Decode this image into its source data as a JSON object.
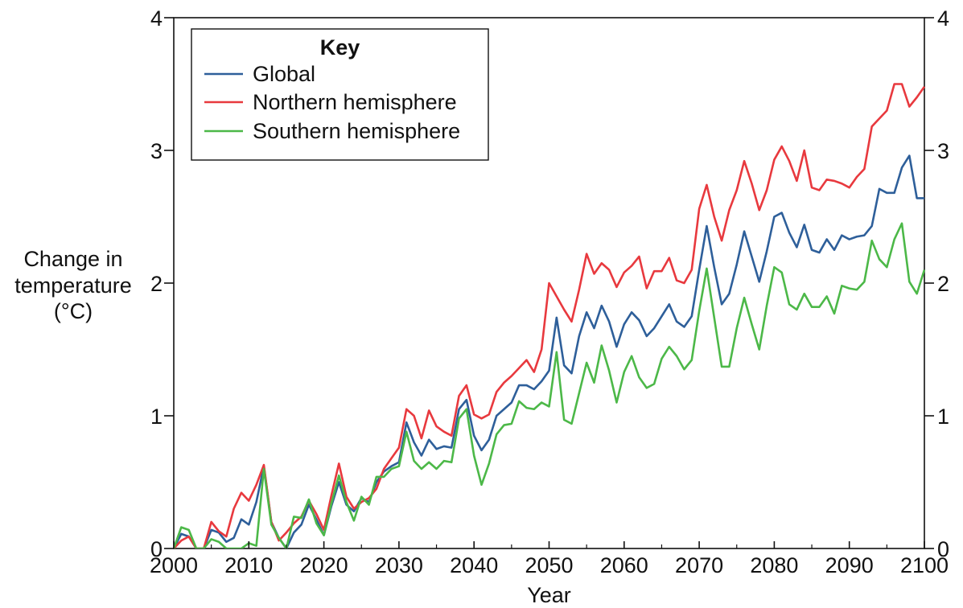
{
  "chart_data": {
    "type": "line",
    "xlabel": "Year",
    "ylabel_lines": [
      "Change in",
      "temperature",
      "(°C)"
    ],
    "xlim": [
      2000,
      2100
    ],
    "ylim": [
      0,
      4
    ],
    "x_ticks": [
      2000,
      2010,
      2020,
      2030,
      2040,
      2050,
      2060,
      2070,
      2080,
      2090,
      2100
    ],
    "y_ticks": [
      0,
      1,
      2,
      3,
      4
    ],
    "y_ticks_right": [
      0,
      1,
      2,
      3,
      4
    ],
    "grid": false,
    "legend": {
      "title": "Key",
      "position": "top-left"
    },
    "series": [
      {
        "name": "Global",
        "color": "#2e5f9a",
        "x": [
          2000,
          2001,
          2002,
          2003,
          2004,
          2005,
          2006,
          2007,
          2008,
          2009,
          2010,
          2011,
          2012,
          2013,
          2014,
          2015,
          2016,
          2017,
          2018,
          2019,
          2020,
          2021,
          2022,
          2023,
          2024,
          2025,
          2026,
          2027,
          2028,
          2029,
          2030,
          2031,
          2032,
          2033,
          2034,
          2035,
          2036,
          2037,
          2038,
          2039,
          2040,
          2041,
          2042,
          2043,
          2044,
          2045,
          2046,
          2047,
          2048,
          2049,
          2050,
          2051,
          2052,
          2053,
          2054,
          2055,
          2056,
          2057,
          2058,
          2059,
          2060,
          2061,
          2062,
          2063,
          2064,
          2065,
          2066,
          2067,
          2068,
          2069,
          2070,
          2071,
          2072,
          2073,
          2074,
          2075,
          2076,
          2077,
          2078,
          2079,
          2080,
          2081,
          2082,
          2083,
          2084,
          2085,
          2086,
          2087,
          2088,
          2089,
          2090,
          2091,
          2092,
          2093,
          2094,
          2095,
          2096,
          2097,
          2098,
          2099,
          2100
        ],
        "values": [
          0.0,
          0.11,
          0.09,
          0.0,
          0.0,
          0.14,
          0.12,
          0.05,
          0.08,
          0.22,
          0.18,
          0.35,
          0.62,
          0.2,
          0.08,
          0.0,
          0.12,
          0.18,
          0.33,
          0.22,
          0.1,
          0.32,
          0.5,
          0.33,
          0.28,
          0.38,
          0.35,
          0.5,
          0.58,
          0.62,
          0.65,
          0.95,
          0.8,
          0.7,
          0.82,
          0.75,
          0.77,
          0.76,
          1.05,
          1.12,
          0.85,
          0.74,
          0.82,
          1.0,
          1.05,
          1.1,
          1.23,
          1.23,
          1.2,
          1.26,
          1.34,
          1.74,
          1.38,
          1.32,
          1.6,
          1.78,
          1.66,
          1.83,
          1.71,
          1.52,
          1.69,
          1.78,
          1.72,
          1.6,
          1.66,
          1.75,
          1.84,
          1.71,
          1.67,
          1.75,
          2.1,
          2.43,
          2.12,
          1.84,
          1.92,
          2.14,
          2.39,
          2.2,
          2.01,
          2.24,
          2.5,
          2.53,
          2.38,
          2.27,
          2.44,
          2.25,
          2.23,
          2.33,
          2.25,
          2.36,
          2.33,
          2.35,
          2.36,
          2.43,
          2.71,
          2.68,
          2.68,
          2.87,
          2.96,
          2.64,
          2.64
        ]
      },
      {
        "name": "Northern hemisphere",
        "color": "#e8393e",
        "x": [
          2000,
          2001,
          2002,
          2003,
          2004,
          2005,
          2006,
          2007,
          2008,
          2009,
          2010,
          2011,
          2012,
          2013,
          2014,
          2015,
          2016,
          2017,
          2018,
          2019,
          2020,
          2021,
          2022,
          2023,
          2024,
          2025,
          2026,
          2027,
          2028,
          2029,
          2030,
          2031,
          2032,
          2033,
          2034,
          2035,
          2036,
          2037,
          2038,
          2039,
          2040,
          2041,
          2042,
          2043,
          2044,
          2045,
          2046,
          2047,
          2048,
          2049,
          2050,
          2051,
          2052,
          2053,
          2054,
          2055,
          2056,
          2057,
          2058,
          2059,
          2060,
          2061,
          2062,
          2063,
          2064,
          2065,
          2066,
          2067,
          2068,
          2069,
          2070,
          2071,
          2072,
          2073,
          2074,
          2075,
          2076,
          2077,
          2078,
          2079,
          2080,
          2081,
          2082,
          2083,
          2084,
          2085,
          2086,
          2087,
          2088,
          2089,
          2090,
          2091,
          2092,
          2093,
          2094,
          2095,
          2096,
          2097,
          2098,
          2099,
          2100
        ],
        "values": [
          0.0,
          0.06,
          0.09,
          0.0,
          0.0,
          0.2,
          0.13,
          0.09,
          0.3,
          0.42,
          0.36,
          0.48,
          0.63,
          0.2,
          0.06,
          0.12,
          0.19,
          0.24,
          0.36,
          0.26,
          0.14,
          0.4,
          0.64,
          0.39,
          0.3,
          0.35,
          0.38,
          0.45,
          0.6,
          0.68,
          0.76,
          1.05,
          1.0,
          0.83,
          1.04,
          0.92,
          0.88,
          0.85,
          1.15,
          1.23,
          1.01,
          0.98,
          1.01,
          1.18,
          1.25,
          1.3,
          1.36,
          1.42,
          1.33,
          1.5,
          2.0,
          1.9,
          1.8,
          1.71,
          1.95,
          2.22,
          2.07,
          2.15,
          2.1,
          1.97,
          2.08,
          2.13,
          2.2,
          1.96,
          2.09,
          2.09,
          2.19,
          2.02,
          2.0,
          2.1,
          2.56,
          2.74,
          2.5,
          2.32,
          2.55,
          2.7,
          2.92,
          2.75,
          2.55,
          2.7,
          2.93,
          3.03,
          2.92,
          2.77,
          3.0,
          2.72,
          2.7,
          2.78,
          2.77,
          2.75,
          2.72,
          2.8,
          2.86,
          3.18,
          3.24,
          3.3,
          3.5,
          3.5,
          3.33,
          3.4,
          3.48
        ]
      },
      {
        "name": "Southern hemisphere",
        "color": "#4cb848",
        "x": [
          2000,
          2001,
          2002,
          2003,
          2004,
          2005,
          2006,
          2007,
          2008,
          2009,
          2010,
          2011,
          2012,
          2013,
          2014,
          2015,
          2016,
          2017,
          2018,
          2019,
          2020,
          2021,
          2022,
          2023,
          2024,
          2025,
          2026,
          2027,
          2028,
          2029,
          2030,
          2031,
          2032,
          2033,
          2034,
          2035,
          2036,
          2037,
          2038,
          2039,
          2040,
          2041,
          2042,
          2043,
          2044,
          2045,
          2046,
          2047,
          2048,
          2049,
          2050,
          2051,
          2052,
          2053,
          2054,
          2055,
          2056,
          2057,
          2058,
          2059,
          2060,
          2061,
          2062,
          2063,
          2064,
          2065,
          2066,
          2067,
          2068,
          2069,
          2070,
          2071,
          2072,
          2073,
          2074,
          2075,
          2076,
          2077,
          2078,
          2079,
          2080,
          2081,
          2082,
          2083,
          2084,
          2085,
          2086,
          2087,
          2088,
          2089,
          2090,
          2091,
          2092,
          2093,
          2094,
          2095,
          2096,
          2097,
          2098,
          2099,
          2100
        ],
        "values": [
          0.0,
          0.16,
          0.14,
          0.0,
          0.0,
          0.07,
          0.05,
          0.0,
          0.0,
          0.0,
          0.04,
          0.02,
          0.6,
          0.18,
          0.08,
          0.0,
          0.24,
          0.23,
          0.37,
          0.19,
          0.1,
          0.34,
          0.55,
          0.35,
          0.21,
          0.39,
          0.33,
          0.54,
          0.54,
          0.6,
          0.62,
          0.88,
          0.66,
          0.6,
          0.65,
          0.6,
          0.66,
          0.65,
          0.98,
          1.05,
          0.7,
          0.48,
          0.64,
          0.86,
          0.93,
          0.94,
          1.11,
          1.06,
          1.05,
          1.1,
          1.07,
          1.48,
          0.97,
          0.94,
          1.17,
          1.4,
          1.25,
          1.53,
          1.34,
          1.1,
          1.33,
          1.45,
          1.29,
          1.21,
          1.24,
          1.43,
          1.52,
          1.45,
          1.35,
          1.42,
          1.79,
          2.11,
          1.74,
          1.37,
          1.37,
          1.66,
          1.89,
          1.69,
          1.5,
          1.83,
          2.12,
          2.08,
          1.84,
          1.8,
          1.92,
          1.82,
          1.82,
          1.9,
          1.77,
          1.98,
          1.96,
          1.95,
          2.01,
          2.32,
          2.18,
          2.12,
          2.33,
          2.45,
          2.01,
          1.92,
          2.1
        ]
      }
    ]
  }
}
